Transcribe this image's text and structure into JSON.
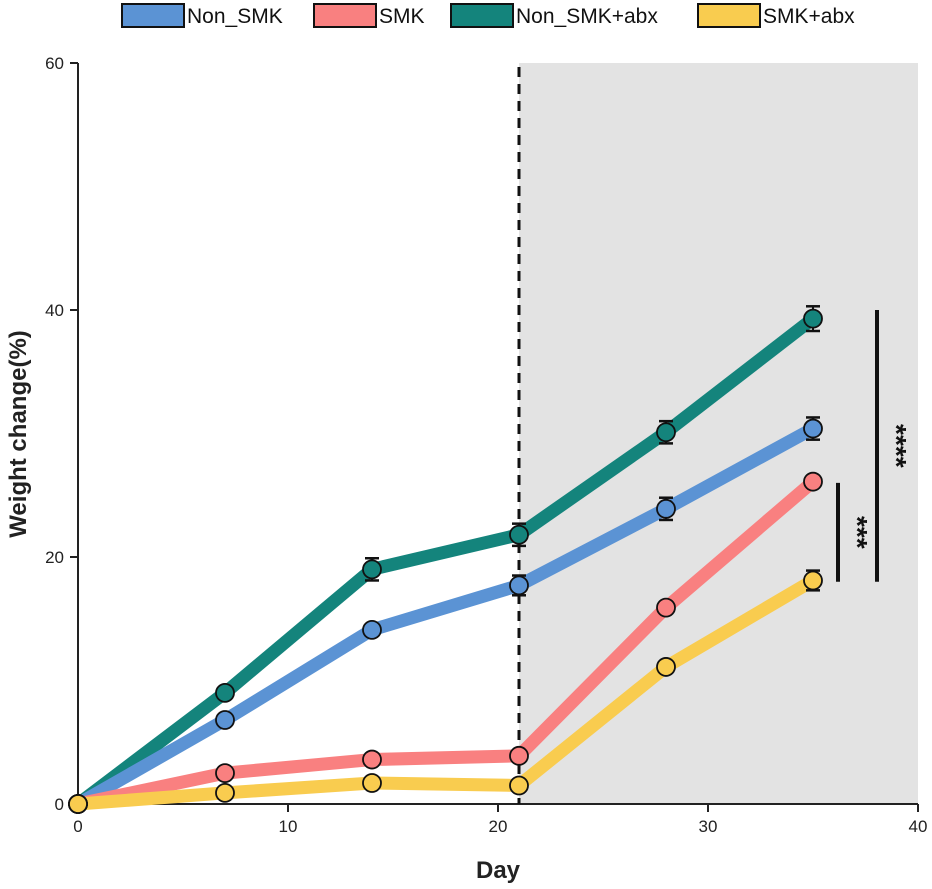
{
  "chart_data": {
    "type": "line",
    "title": "",
    "xlabel": "Day",
    "ylabel": "Weight change(%)",
    "xlim": [
      0,
      40
    ],
    "ylim": [
      0,
      60
    ],
    "xticks": [
      0,
      10,
      20,
      30,
      40
    ],
    "yticks": [
      0,
      20,
      40,
      60
    ],
    "x": [
      0,
      7,
      14,
      21,
      28,
      35
    ],
    "grid": false,
    "legend_position": "top",
    "shaded_region": {
      "from_x": 21,
      "to_x": 40,
      "color": "#e3e3e3"
    },
    "divider_x": 21,
    "series": [
      {
        "name": "Non_SMK",
        "color": "#5b93d4",
        "values": [
          0,
          6.8,
          14.1,
          17.7,
          23.9,
          30.4
        ],
        "errors": [
          0,
          0,
          0,
          0.8,
          0.9,
          0.9
        ]
      },
      {
        "name": "SMK",
        "color": "#f98080",
        "values": [
          0,
          2.5,
          3.6,
          3.9,
          15.9,
          26.1
        ],
        "errors": [
          0,
          0,
          0,
          0,
          0,
          0
        ]
      },
      {
        "name": "Non_SMK+abx",
        "color": "#14847c",
        "values": [
          0,
          9.0,
          19.0,
          21.8,
          30.1,
          39.3
        ],
        "errors": [
          0,
          0,
          0.9,
          0.9,
          0.9,
          1.0
        ]
      },
      {
        "name": "SMK+abx",
        "color": "#f9cc4f",
        "values": [
          0,
          0.9,
          1.7,
          1.5,
          11.1,
          18.1
        ],
        "errors": [
          0,
          0,
          0,
          0,
          0,
          0.8
        ]
      }
    ],
    "significance": [
      {
        "label": "***",
        "y_range": [
          18,
          26
        ]
      },
      {
        "label": "****",
        "y_range": [
          18,
          40
        ]
      }
    ]
  }
}
